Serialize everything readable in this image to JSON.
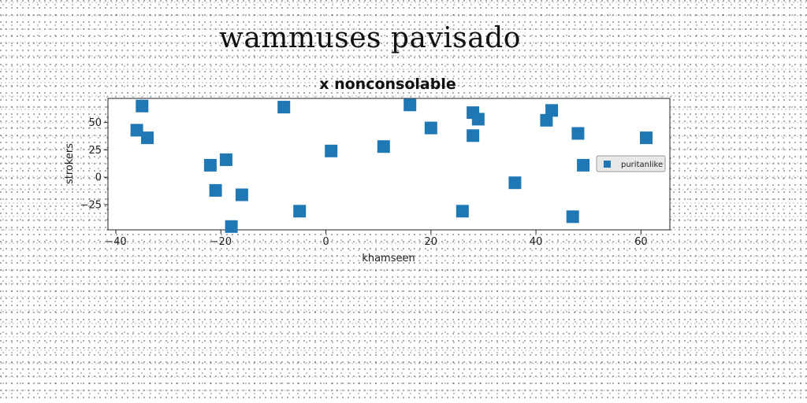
{
  "page": {
    "title": "wammuses pavisado"
  },
  "chart_data": {
    "type": "scatter",
    "title": "x nonconsolable",
    "xlabel": "khamseen",
    "ylabel": "strokers",
    "xlim": [
      -41.5,
      65.5
    ],
    "ylim": [
      -48,
      72
    ],
    "xticks": [
      -40,
      -20,
      0,
      20,
      40,
      60
    ],
    "yticks": [
      -25,
      0,
      25,
      50
    ],
    "xtick_labels": [
      "−40",
      "−20",
      "0",
      "20",
      "40",
      "60"
    ],
    "ytick_labels": [
      "−25",
      "0",
      "25",
      "50"
    ],
    "grid": false,
    "legend_position": "center-right",
    "series": [
      {
        "name": "puritanlike",
        "color": "#1f77b4",
        "marker": "square",
        "x": [
          -35,
          -36,
          -34,
          -22,
          -19,
          -21,
          -16,
          -18,
          -8,
          -5,
          1,
          11,
          16,
          20,
          26,
          28,
          28,
          29,
          36,
          42,
          43,
          47,
          48,
          49,
          61
        ],
        "y": [
          65,
          43,
          36,
          11,
          16,
          -12,
          -16,
          -45,
          64,
          -31,
          24,
          28,
          66,
          45,
          -31,
          59,
          38,
          53,
          -5,
          52,
          61,
          -36,
          40,
          11,
          36
        ]
      }
    ]
  }
}
